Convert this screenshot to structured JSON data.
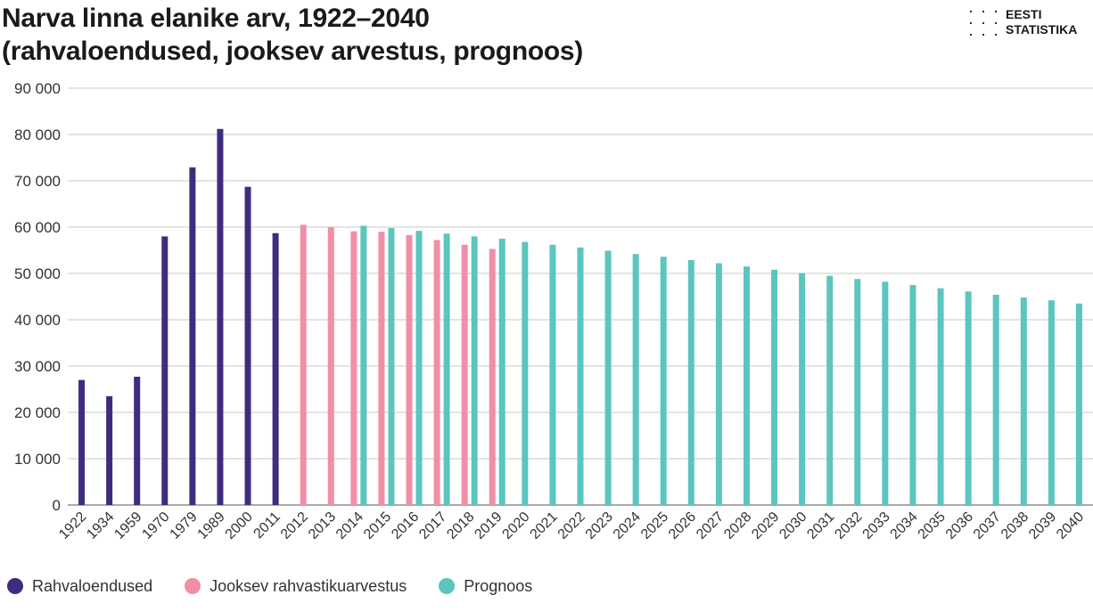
{
  "header": {
    "title_line1": "Narva linna elanike arv, 1922–2040",
    "title_line2": "(rahvaloendused, jooksev arvestus, prognoos)"
  },
  "logo": {
    "line1": "EESTI",
    "line2": "STATISTIKA"
  },
  "legend": [
    {
      "label": "Rahvaloendused",
      "color": "#3f2c7e"
    },
    {
      "label": "Jooksev rahvastikuarvestus",
      "color": "#f08fa6"
    },
    {
      "label": "Prognoos",
      "color": "#5bc5be"
    }
  ],
  "chart_data": {
    "type": "bar",
    "title": "Narva linna elanike arv, 1922–2040 (rahvaloendused, jooksev arvestus, prognoos)",
    "ylim": [
      0,
      90000
    ],
    "yticks": [
      0,
      10000,
      20000,
      30000,
      40000,
      50000,
      60000,
      70000,
      80000,
      90000
    ],
    "ytick_labels": [
      "0",
      "10 000",
      "20 000",
      "30 000",
      "40 000",
      "50 000",
      "60 000",
      "70 000",
      "80 000",
      "90 000"
    ],
    "grid": true,
    "legend_position": "bottom-left",
    "categories": [
      "1922",
      "1934",
      "1959",
      "1970",
      "1979",
      "1989",
      "2000",
      "2011",
      "2012",
      "2013",
      "2014",
      "2015",
      "2016",
      "2017",
      "2018",
      "2019",
      "2020",
      "2021",
      "2022",
      "2023",
      "2024",
      "2025",
      "2026",
      "2027",
      "2028",
      "2029",
      "2030",
      "2031",
      "2032",
      "2033",
      "2034",
      "2035",
      "2036",
      "2037",
      "2038",
      "2039",
      "2040"
    ],
    "series": [
      {
        "name": "Rahvaloendused",
        "color": "#3f2c7e",
        "values": [
          27000,
          23500,
          27700,
          58000,
          72900,
          81200,
          68700,
          58700,
          null,
          null,
          null,
          null,
          null,
          null,
          null,
          null,
          null,
          null,
          null,
          null,
          null,
          null,
          null,
          null,
          null,
          null,
          null,
          null,
          null,
          null,
          null,
          null,
          null,
          null,
          null,
          null,
          null
        ]
      },
      {
        "name": "Jooksev rahvastikuarvestus",
        "color": "#f08fa6",
        "values": [
          null,
          null,
          null,
          null,
          null,
          null,
          null,
          null,
          60500,
          60000,
          59100,
          59000,
          58300,
          57200,
          56200,
          55300,
          null,
          null,
          null,
          null,
          null,
          null,
          null,
          null,
          null,
          null,
          null,
          null,
          null,
          null,
          null,
          null,
          null,
          null,
          null,
          null,
          null
        ]
      },
      {
        "name": "Prognoos",
        "color": "#5bc5be",
        "values": [
          null,
          null,
          null,
          null,
          null,
          null,
          null,
          null,
          null,
          null,
          60300,
          59800,
          59200,
          58600,
          58000,
          57500,
          56800,
          56200,
          55600,
          54900,
          54200,
          53600,
          52900,
          52200,
          51500,
          50800,
          50100,
          49500,
          48800,
          48200,
          47500,
          46800,
          46100,
          45400,
          44800,
          44200,
          43500
        ]
      }
    ]
  }
}
